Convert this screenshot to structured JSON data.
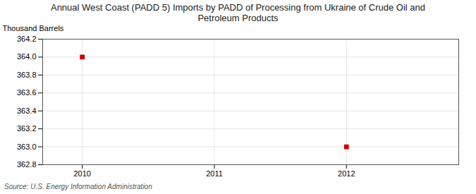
{
  "chart_data": {
    "type": "scatter",
    "title": "Annual West Coast (PADD 5) Imports by PADD of Processing from Ukraine of Crude Oil and\nPetroleum Products",
    "ylabel": "Thousand Barrels",
    "source": "Source: U.S. Energy Information Administration",
    "x": [
      2010,
      2012
    ],
    "values": [
      364.0,
      363.0
    ],
    "color": "#cc0000",
    "marker": "square",
    "xlim": [
      2009.7,
      2012.85
    ],
    "ylim": [
      362.8,
      364.2
    ],
    "xticks": [
      2010,
      2011,
      2012
    ],
    "yticks": [
      362.8,
      {
        "value": 363.0,
        "label": "363.0"
      },
      363.2,
      363.4,
      363.6,
      363.8,
      {
        "value": 364.0,
        "label": "364.0"
      },
      364.2
    ],
    "grid": true
  }
}
